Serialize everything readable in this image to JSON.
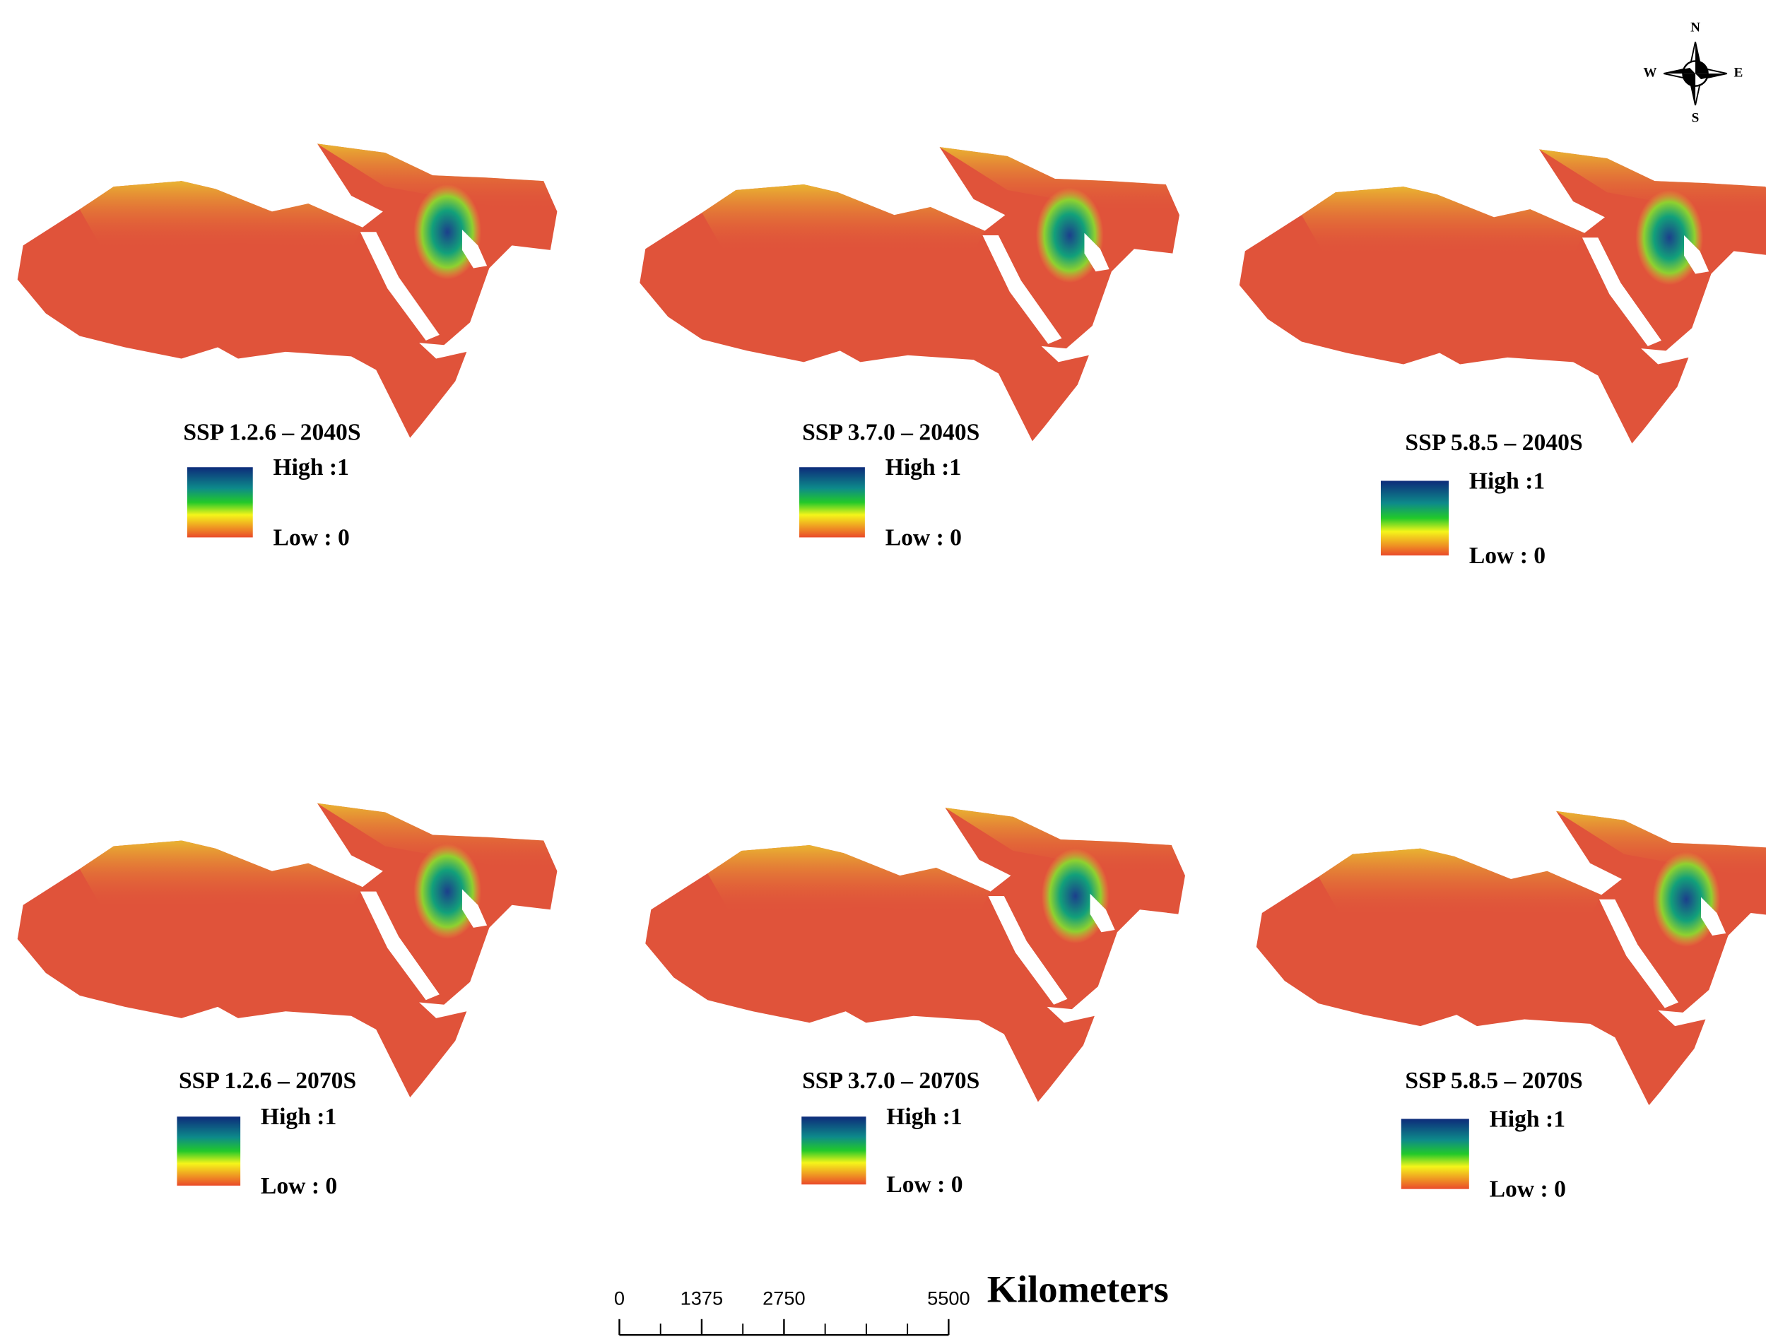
{
  "panels": [
    {
      "title": "SSP 1.2.6 – 2040S",
      "legend": {
        "high": "High :1",
        "low": "Low : 0"
      }
    },
    {
      "title": "SSP 3.7.0 – 2040S",
      "legend": {
        "high": "High :1",
        "low": "Low : 0"
      }
    },
    {
      "title": "SSP 5.8.5 – 2040S",
      "legend": {
        "high": "High :1",
        "low": "Low : 0"
      }
    },
    {
      "title": "SSP 1.2.6 – 2070S",
      "legend": {
        "high": "High :1",
        "low": "Low : 0"
      }
    },
    {
      "title": "SSP 3.7.0 – 2070S",
      "legend": {
        "high": "High :1",
        "low": "Low : 0"
      }
    },
    {
      "title": "SSP 5.8.5 – 2070S",
      "legend": {
        "high": "High :1",
        "low": "Low : 0"
      }
    }
  ],
  "compass": {
    "n": "N",
    "e": "E",
    "s": "S",
    "w": "W"
  },
  "scale_bar": {
    "ticks": [
      0,
      1375,
      2750,
      5500
    ],
    "unit": "Kilometers"
  }
}
